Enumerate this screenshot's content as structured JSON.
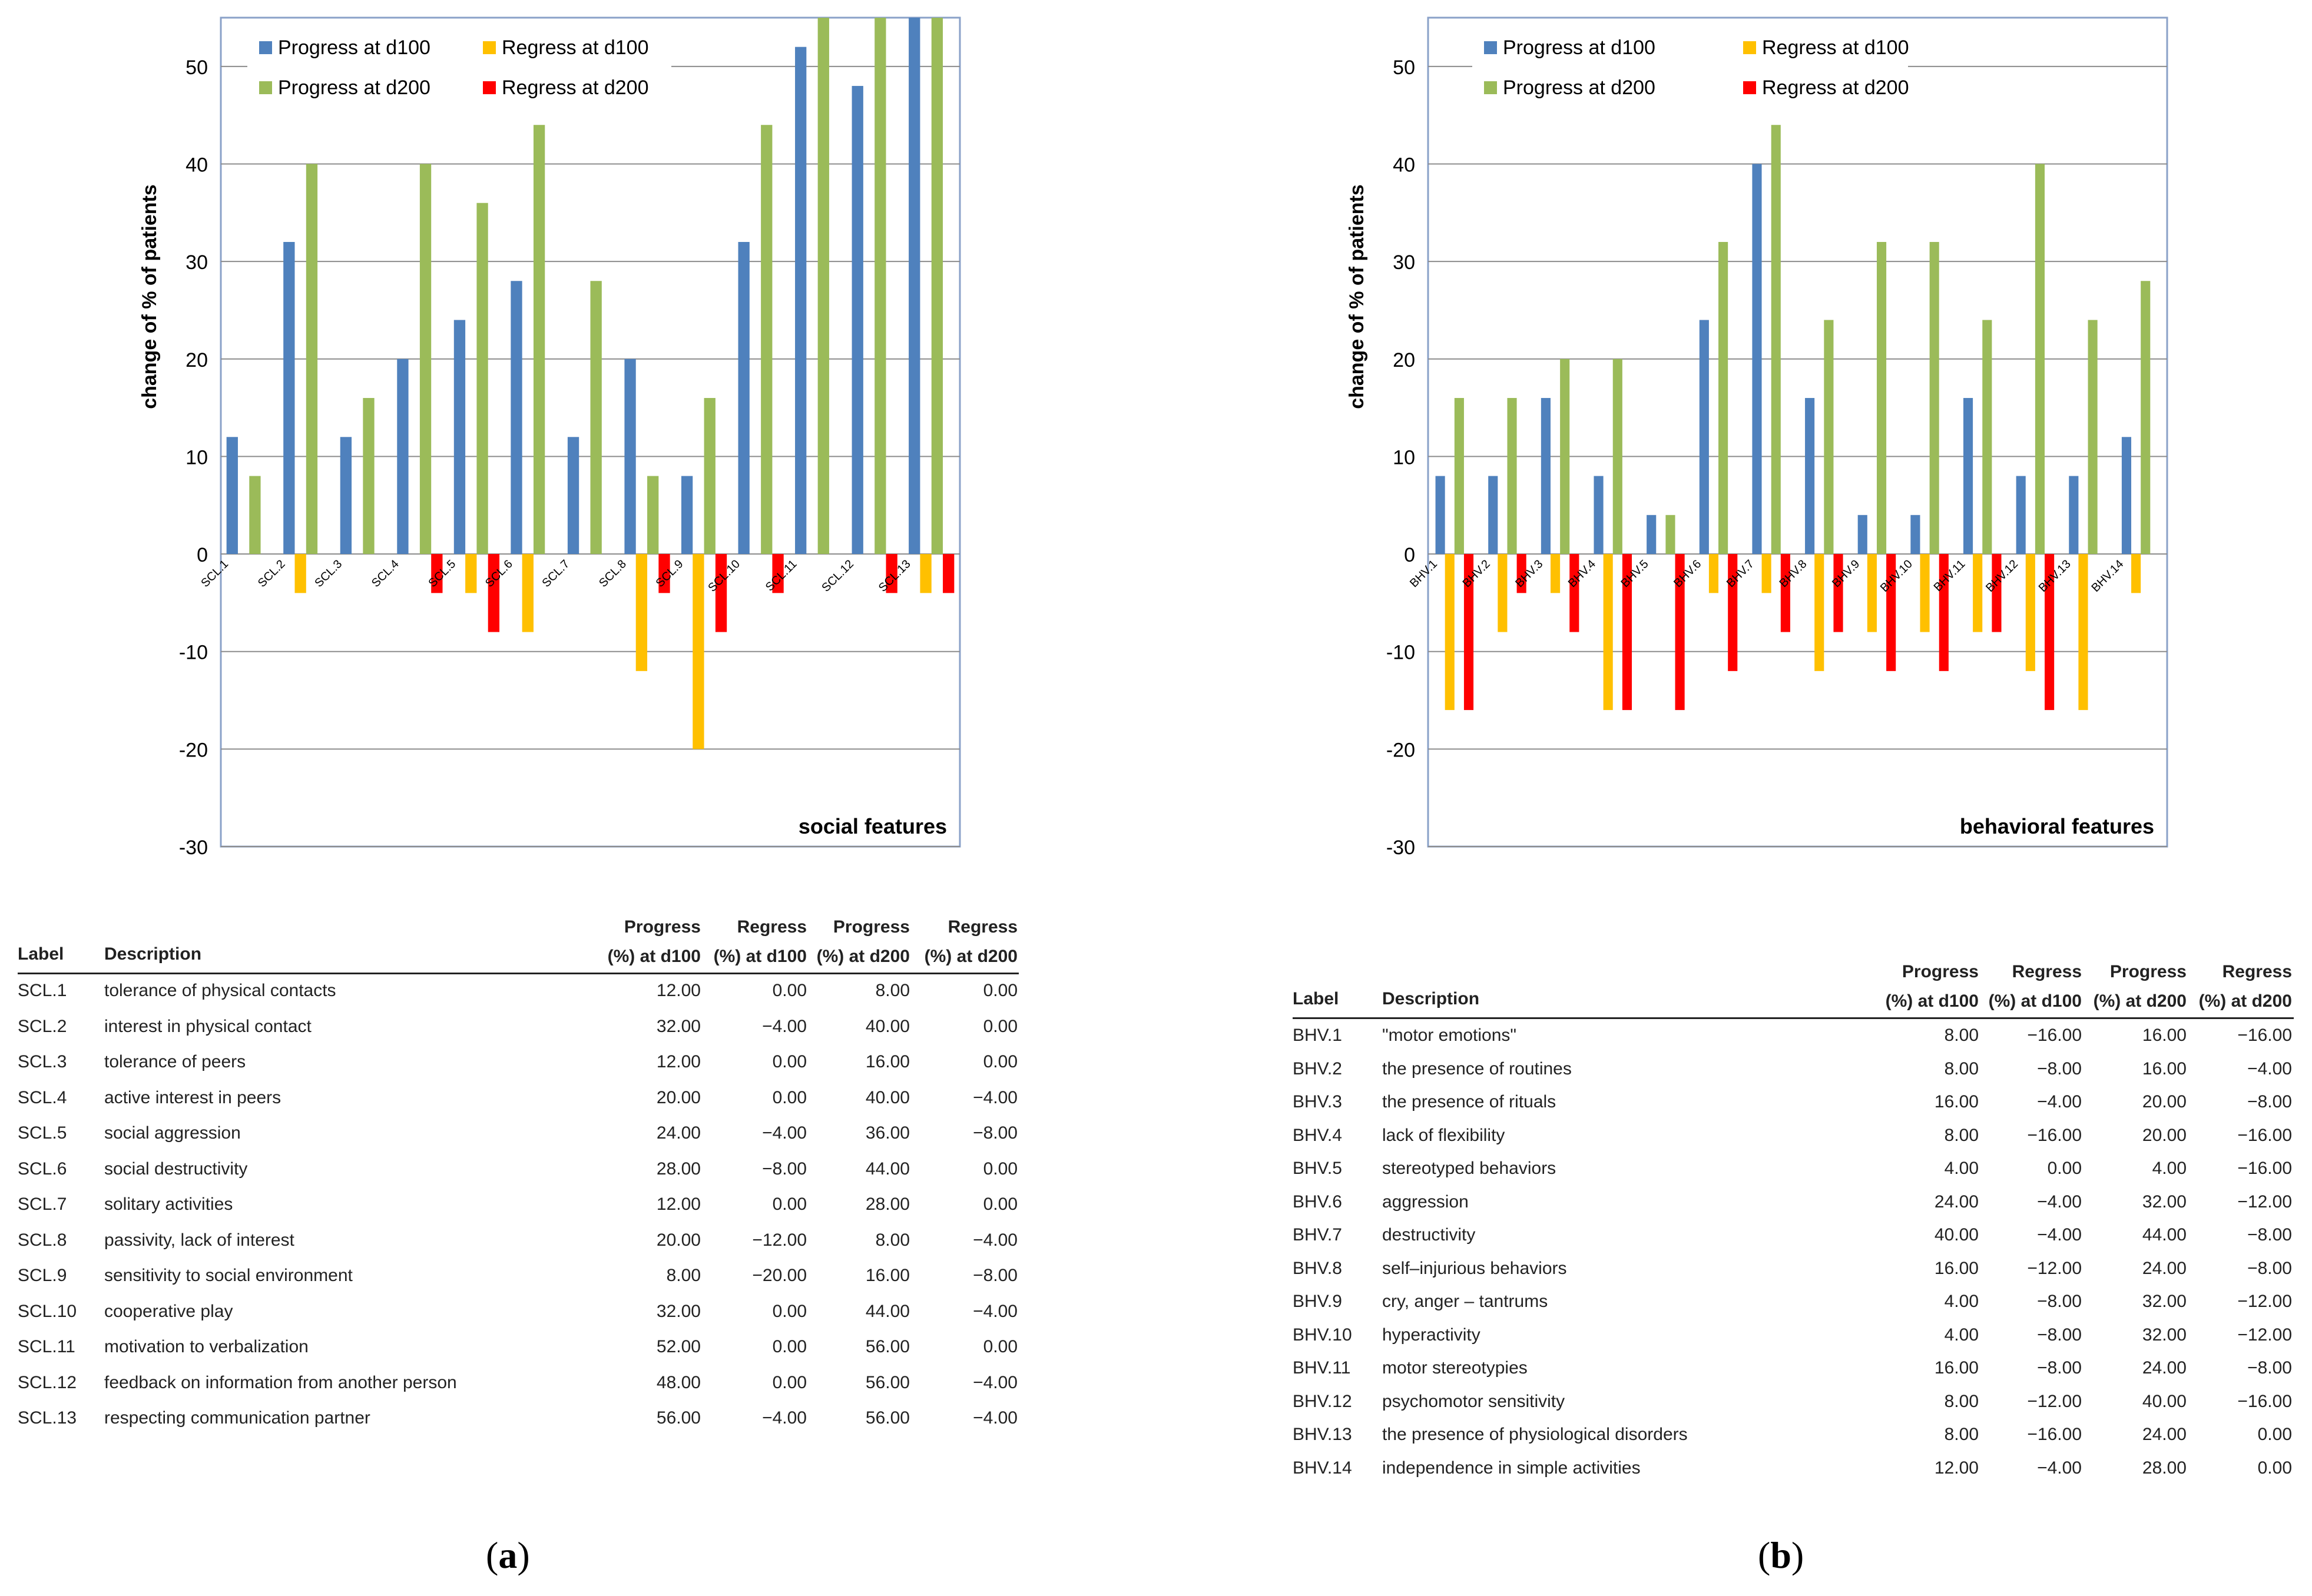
{
  "legend_labels": [
    "Progress at d100",
    "Regress at d100",
    "Progress at d200",
    "Regress at d200"
  ],
  "colors": {
    "p100": "#4f81bd",
    "r100": "#ffc000",
    "p200": "#9bbb59",
    "r200": "#ff0000"
  },
  "chart_data": [
    {
      "type": "bar",
      "title": "social features",
      "ylabel": "change of % of patients",
      "xlabel": "",
      "ylim": [
        -30,
        55
      ],
      "yticks": [
        -30,
        -20,
        -10,
        0,
        10,
        20,
        30,
        40,
        50
      ],
      "categories": [
        "SCL.1",
        "SCL.2",
        "SCL.3",
        "SCL.4",
        "SCL.5",
        "SCL.6",
        "SCL.7",
        "SCL.8",
        "SCL.9",
        "SCL.10",
        "SCL.11",
        "SCL.12",
        "SCL.13"
      ],
      "series": [
        {
          "name": "Progress at d100",
          "values": [
            12,
            32,
            12,
            20,
            24,
            28,
            12,
            20,
            8,
            32,
            52,
            48,
            56
          ]
        },
        {
          "name": "Regress at d100",
          "values": [
            0,
            -4,
            0,
            0,
            -4,
            -8,
            0,
            -12,
            -20,
            0,
            0,
            0,
            -4
          ]
        },
        {
          "name": "Progress at d200",
          "values": [
            8,
            40,
            16,
            40,
            36,
            44,
            28,
            8,
            16,
            44,
            56,
            56,
            56
          ]
        },
        {
          "name": "Regress at d200",
          "values": [
            0,
            0,
            0,
            -4,
            -8,
            0,
            0,
            -4,
            -8,
            -4,
            0,
            -4,
            -4
          ]
        }
      ]
    },
    {
      "type": "bar",
      "title": "behavioral features",
      "ylabel": "change of  % of patients",
      "xlabel": "",
      "ylim": [
        -30,
        55
      ],
      "yticks": [
        -30,
        -20,
        -10,
        0,
        10,
        20,
        30,
        40,
        50
      ],
      "categories": [
        "BHV.1",
        "BHV.2",
        "BHV.3",
        "BHV.4",
        "BHV.5",
        "BHV.6",
        "BHV.7",
        "BHV.8",
        "BHV.9",
        "BHV.10",
        "BHV.11",
        "BHV.12",
        "BHV.13",
        "BHV.14"
      ],
      "series": [
        {
          "name": "Progress at d100",
          "values": [
            8,
            8,
            16,
            8,
            4,
            24,
            40,
            16,
            4,
            4,
            16,
            8,
            8,
            12
          ]
        },
        {
          "name": "Regress at d100",
          "values": [
            -16,
            -8,
            -4,
            -16,
            0,
            -4,
            -4,
            -12,
            -8,
            -8,
            -8,
            -12,
            -16,
            -4
          ]
        },
        {
          "name": "Progress at d200",
          "values": [
            16,
            16,
            20,
            20,
            4,
            32,
            44,
            24,
            32,
            32,
            24,
            40,
            24,
            28
          ]
        },
        {
          "name": "Regress at d200",
          "values": [
            -16,
            -4,
            -8,
            -16,
            -16,
            -12,
            -8,
            -8,
            -12,
            -12,
            -8,
            -16,
            0,
            0
          ]
        }
      ]
    }
  ],
  "tables": [
    {
      "headers": {
        "label": "Label",
        "description": "Description",
        "cols": [
          [
            "Progress",
            "(%) at d100"
          ],
          [
            "Regress",
            "(%) at d100"
          ],
          [
            "Progress",
            "(%) at d200"
          ],
          [
            "Regress",
            "(%) at d200"
          ]
        ]
      },
      "rows": [
        [
          "SCL.1",
          "tolerance of physical contacts",
          "12.00",
          "0.00",
          "8.00",
          "0.00"
        ],
        [
          "SCL.2",
          "interest in physical contact",
          "32.00",
          "−4.00",
          "40.00",
          "0.00"
        ],
        [
          "SCL.3",
          "tolerance of peers",
          "12.00",
          "0.00",
          "16.00",
          "0.00"
        ],
        [
          "SCL.4",
          "active interest in peers",
          "20.00",
          "0.00",
          "40.00",
          "−4.00"
        ],
        [
          "SCL.5",
          "social aggression",
          "24.00",
          "−4.00",
          "36.00",
          "−8.00"
        ],
        [
          "SCL.6",
          "social destructivity",
          "28.00",
          "−8.00",
          "44.00",
          "0.00"
        ],
        [
          "SCL.7",
          "solitary activities",
          "12.00",
          "0.00",
          "28.00",
          "0.00"
        ],
        [
          "SCL.8",
          "passivity, lack of interest",
          "20.00",
          "−12.00",
          "8.00",
          "−4.00"
        ],
        [
          "SCL.9",
          "sensitivity to social environment",
          "8.00",
          "−20.00",
          "16.00",
          "−8.00"
        ],
        [
          "SCL.10",
          "cooperative play",
          "32.00",
          "0.00",
          "44.00",
          "−4.00"
        ],
        [
          "SCL.11",
          "motivation to verbalization",
          "52.00",
          "0.00",
          "56.00",
          "0.00"
        ],
        [
          "SCL.12",
          "feedback on information from another person",
          "48.00",
          "0.00",
          "56.00",
          "−4.00"
        ],
        [
          "SCL.13",
          "respecting communication partner",
          "56.00",
          "−4.00",
          "56.00",
          "−4.00"
        ]
      ]
    },
    {
      "headers": {
        "label": "Label",
        "description": "Description",
        "cols": [
          [
            "Progress",
            "(%) at d100"
          ],
          [
            "Regress",
            "(%) at d100"
          ],
          [
            "Progress",
            "(%) at d200"
          ],
          [
            "Regress",
            "(%) at d200"
          ]
        ]
      },
      "rows": [
        [
          "BHV.1",
          "\"motor emotions\"",
          "8.00",
          "−16.00",
          "16.00",
          "−16.00"
        ],
        [
          "BHV.2",
          "the presence of routines",
          "8.00",
          "−8.00",
          "16.00",
          "−4.00"
        ],
        [
          "BHV.3",
          "the presence of rituals",
          "16.00",
          "−4.00",
          "20.00",
          "−8.00"
        ],
        [
          "BHV.4",
          "lack of flexibility",
          "8.00",
          "−16.00",
          "20.00",
          "−16.00"
        ],
        [
          "BHV.5",
          "stereotyped behaviors",
          "4.00",
          "0.00",
          "4.00",
          "−16.00"
        ],
        [
          "BHV.6",
          "aggression",
          "24.00",
          "−4.00",
          "32.00",
          "−12.00"
        ],
        [
          "BHV.7",
          "destructivity",
          "40.00",
          "−4.00",
          "44.00",
          "−8.00"
        ],
        [
          "BHV.8",
          "self–injurious behaviors",
          "16.00",
          "−12.00",
          "24.00",
          "−8.00"
        ],
        [
          "BHV.9",
          "cry, anger – tantrums",
          "4.00",
          "−8.00",
          "32.00",
          "−12.00"
        ],
        [
          "BHV.10",
          "hyperactivity",
          "4.00",
          "−8.00",
          "32.00",
          "−12.00"
        ],
        [
          "BHV.11",
          "motor stereotypies",
          "16.00",
          "−8.00",
          "24.00",
          "−8.00"
        ],
        [
          "BHV.12",
          "psychomotor sensitivity",
          "8.00",
          "−12.00",
          "40.00",
          "−16.00"
        ],
        [
          "BHV.13",
          "the presence of physiological disorders",
          "8.00",
          "−16.00",
          "24.00",
          "0.00"
        ],
        [
          "BHV.14",
          "independence in simple activities",
          "12.00",
          "−4.00",
          "28.00",
          "0.00"
        ]
      ]
    }
  ],
  "panel_labels": [
    {
      "open": "(",
      "letter": "a",
      "close": ")"
    },
    {
      "open": "(",
      "letter": "b",
      "close": ")"
    }
  ]
}
